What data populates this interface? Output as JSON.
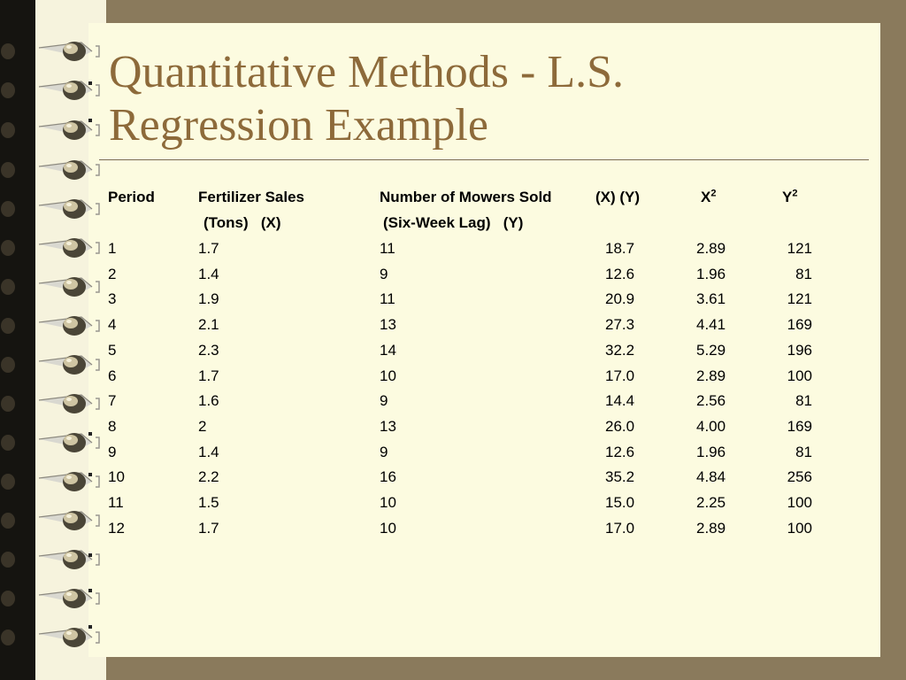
{
  "title": "Quantitative Methods - L.S.\nRegression Example",
  "table": {
    "headers": {
      "period": "Period",
      "fert_line1": "Fertilizer Sales",
      "fert_line2": "(Tons)   (X)",
      "mowers_line1": "Number of Mowers Sold",
      "mowers_line2": "(Six-Week Lag)   (Y)",
      "xy": "(X) (Y)",
      "x2_base": "X",
      "y2_base": "Y",
      "sup": "2"
    },
    "rows": [
      {
        "period": "1",
        "x": "1.7",
        "y": "11",
        "xy": "18.7",
        "x2": "2.89",
        "y2": "121"
      },
      {
        "period": "2",
        "x": "1.4",
        "y": "9",
        "xy": "12.6",
        "x2": "1.96",
        "y2": "81"
      },
      {
        "period": "3",
        "x": "1.9",
        "y": "11",
        "xy": "20.9",
        "x2": "3.61",
        "y2": "121"
      },
      {
        "period": "4",
        "x": "2.1",
        "y": "13",
        "xy": "27.3",
        "x2": "4.41",
        "y2": "169"
      },
      {
        "period": "5",
        "x": "2.3",
        "y": "14",
        "xy": "32.2",
        "x2": "5.29",
        "y2": "196"
      },
      {
        "period": "6",
        "x": "1.7",
        "y": "10",
        "xy": "17.0",
        "x2": "2.89",
        "y2": "100"
      },
      {
        "period": "7",
        "x": "1.6",
        "y": "9",
        "xy": "14.4",
        "x2": "2.56",
        "y2": "81"
      },
      {
        "period": "8",
        "x": "2",
        "y": "13",
        "xy": "26.0",
        "x2": "4.00",
        "y2": "169"
      },
      {
        "period": "9",
        "x": "1.4",
        "y": "9",
        "xy": "12.6",
        "x2": "1.96",
        "y2": "81"
      },
      {
        "period": "10",
        "x": "2.2",
        "y": "16",
        "xy": "35.2",
        "x2": "4.84",
        "y2": "256"
      },
      {
        "period": "11",
        "x": "1.5",
        "y": "10",
        "xy": "15.0",
        "x2": "2.25",
        "y2": "100"
      },
      {
        "period": "12",
        "x": "1.7",
        "y": "10",
        "xy": "17.0",
        "x2": "2.89",
        "y2": "100"
      }
    ]
  },
  "colors": {
    "background": "#8a7a5c",
    "page": "#fcfbe0",
    "title": "#8d6a3a"
  }
}
